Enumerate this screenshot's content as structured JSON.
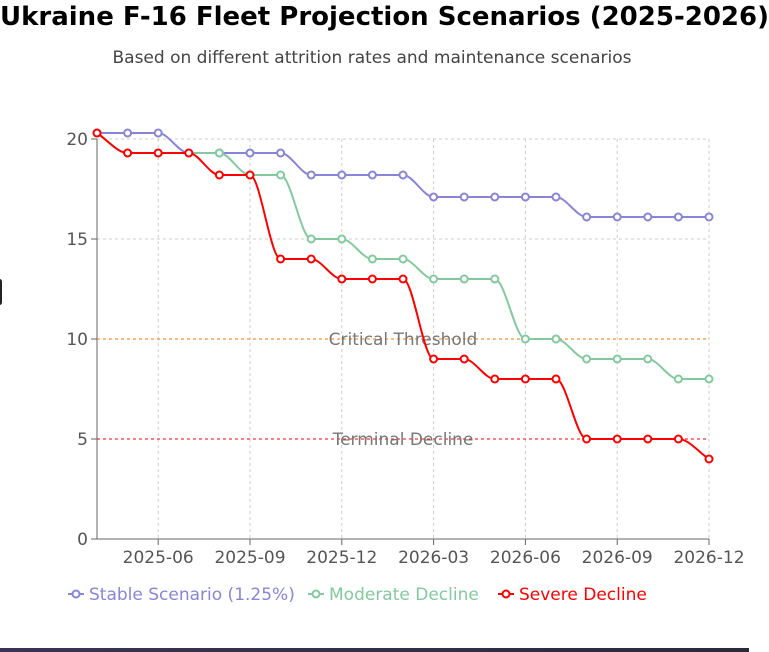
{
  "title": "Ukraine F-16 Fleet Projection Scenarios (2025-2026)",
  "subtitle": "Based on different attrition rates and maintenance scenarios",
  "chart_data": {
    "type": "line",
    "x": [
      "2025-04",
      "2025-05",
      "2025-06",
      "2025-07",
      "2025-08",
      "2025-09",
      "2025-10",
      "2025-11",
      "2025-12",
      "2026-01",
      "2026-02",
      "2026-03",
      "2026-04",
      "2026-05",
      "2026-06",
      "2026-07",
      "2026-08",
      "2026-09",
      "2026-10",
      "2026-11",
      "2026-12"
    ],
    "x_ticks": [
      "2025-06",
      "2025-09",
      "2025-12",
      "2026-03",
      "2026-06",
      "2026-09",
      "2026-12"
    ],
    "ylim": [
      0,
      20
    ],
    "y_ticks": [
      0,
      5,
      10,
      15,
      20
    ],
    "grid": true,
    "legend": "bottom",
    "series": [
      {
        "name": "Stable Scenario (1.25%)",
        "color": "#8884d8",
        "values": [
          20.3,
          20.3,
          20.3,
          19.3,
          19.3,
          19.3,
          19.3,
          18.2,
          18.2,
          18.2,
          18.2,
          17.1,
          17.1,
          17.1,
          17.1,
          17.1,
          16.1,
          16.1,
          16.1,
          16.1,
          16.1
        ]
      },
      {
        "name": "Moderate Decline",
        "color": "#82ca9d",
        "values": [
          20.3,
          19.3,
          19.3,
          19.3,
          19.3,
          18.2,
          18.2,
          15.0,
          15.0,
          14.0,
          14.0,
          13.0,
          13.0,
          13.0,
          10.0,
          10.0,
          9.0,
          9.0,
          9.0,
          8.0,
          8.0
        ]
      },
      {
        "name": "Severe Decline",
        "color": "#ff0000",
        "values": [
          20.3,
          19.3,
          19.3,
          19.3,
          18.2,
          18.2,
          14.0,
          14.0,
          13.0,
          13.0,
          13.0,
          9.0,
          9.0,
          8.0,
          8.0,
          8.0,
          5.0,
          5.0,
          5.0,
          5.0,
          4.0
        ]
      }
    ],
    "reference_lines": [
      {
        "label": "Critical Threshold",
        "y": 10,
        "color": "#ff7300"
      },
      {
        "label": "Terminal Decline",
        "y": 5,
        "color": "#ff0000"
      }
    ]
  }
}
